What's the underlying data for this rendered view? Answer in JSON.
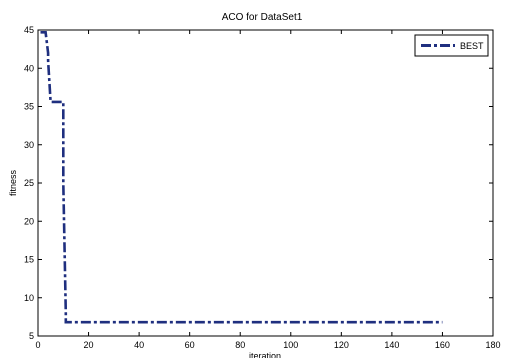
{
  "chart_data": {
    "type": "line",
    "title": "ACO for DataSet1",
    "xlabel": "iteration",
    "ylabel": "fitness",
    "xlim": [
      0,
      180
    ],
    "ylim": [
      5,
      45
    ],
    "xticks": [
      0,
      20,
      40,
      60,
      80,
      100,
      120,
      140,
      160,
      180
    ],
    "yticks": [
      5,
      10,
      15,
      20,
      25,
      30,
      35,
      40,
      45
    ],
    "grid": false,
    "legend": {
      "position": "top-right",
      "entries": [
        "BEST"
      ]
    },
    "series": [
      {
        "name": "BEST",
        "color": "#1f2f7f",
        "style": "dash-dot",
        "x": [
          1,
          3,
          4,
          4,
          5,
          10,
          10,
          11,
          11,
          160
        ],
        "y": [
          44.7,
          44.7,
          42.0,
          41.0,
          35.6,
          35.6,
          25.0,
          8.0,
          6.8,
          6.8
        ]
      }
    ]
  }
}
